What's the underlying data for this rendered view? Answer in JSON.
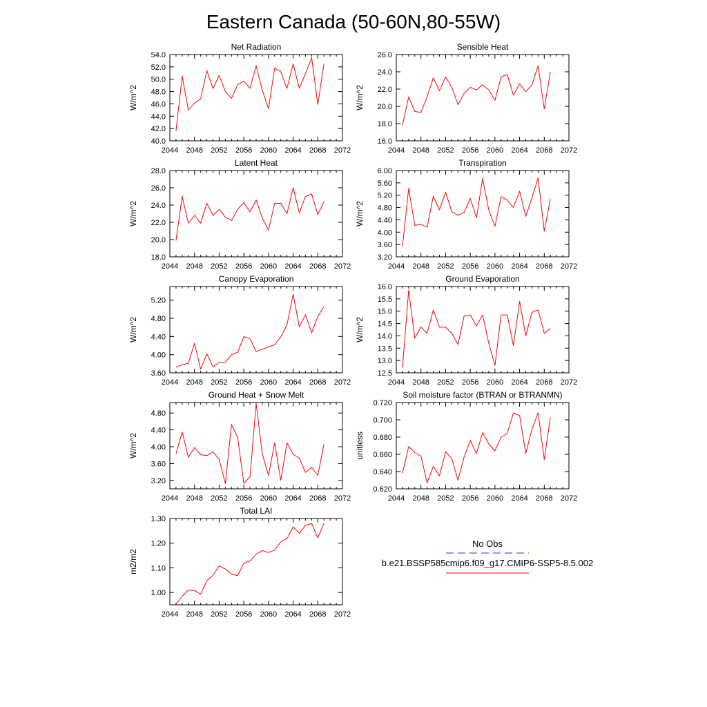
{
  "figure": {
    "title": "Eastern Canada (50-60N,80-55W)",
    "legend": {
      "entries": [
        {
          "label": "No Obs",
          "color": "#2c2ccf",
          "dashed": true
        },
        {
          "label": "b.e21.BSSP585cmip6.f09_g17.CMIP6-SSP5-8.5.002",
          "color": "#ff0000",
          "dashed": false
        }
      ]
    }
  },
  "chart_data": [
    {
      "type": "line",
      "title": "Net Radiation",
      "xlabel": "",
      "ylabel": "W/m^2",
      "xlim": [
        2044,
        2072
      ],
      "ylim": [
        40,
        54
      ],
      "yticks": [
        40,
        42,
        44,
        46,
        48,
        50,
        52,
        54
      ],
      "ydecimals": 1,
      "xticks": [
        2044,
        2048,
        2052,
        2056,
        2060,
        2064,
        2068,
        2072
      ],
      "series": [
        {
          "color": "#ff0000",
          "x": [
            2045,
            2046,
            2047,
            2048,
            2049,
            2050,
            2051,
            2052,
            2053,
            2054,
            2055,
            2056,
            2057,
            2058,
            2059,
            2060,
            2061,
            2062,
            2063,
            2064,
            2065,
            2066,
            2067,
            2068,
            2069
          ],
          "y": [
            41.6,
            50.5,
            45.0,
            46.1,
            46.8,
            51.4,
            48.5,
            50.6,
            48.0,
            46.9,
            49.1,
            49.7,
            48.5,
            52.2,
            48.2,
            45.2,
            51.8,
            51.2,
            48.5,
            52.5,
            48.5,
            50.9,
            53.5,
            45.9,
            52.5
          ]
        }
      ]
    },
    {
      "type": "line",
      "title": "Sensible Heat",
      "xlabel": "",
      "ylabel": "W/m^2",
      "xlim": [
        2044,
        2072
      ],
      "ylim": [
        16,
        26
      ],
      "yticks": [
        16,
        18,
        20,
        22,
        24,
        26
      ],
      "ydecimals": 1,
      "xticks": [
        2044,
        2048,
        2052,
        2056,
        2060,
        2064,
        2068,
        2072
      ],
      "series": [
        {
          "color": "#ff0000",
          "x": [
            2045,
            2046,
            2047,
            2048,
            2049,
            2050,
            2051,
            2052,
            2053,
            2054,
            2055,
            2056,
            2057,
            2058,
            2059,
            2060,
            2061,
            2062,
            2063,
            2064,
            2065,
            2066,
            2067,
            2068,
            2069
          ],
          "y": [
            17.8,
            21.1,
            19.4,
            19.3,
            21.1,
            23.3,
            21.8,
            23.4,
            22.2,
            20.2,
            21.5,
            22.2,
            21.9,
            22.5,
            21.9,
            20.7,
            23.4,
            23.7,
            21.3,
            22.6,
            21.7,
            22.5,
            24.7,
            19.7,
            24.0
          ]
        }
      ]
    },
    {
      "type": "line",
      "title": "Latent Heat",
      "xlabel": "",
      "ylabel": "W/m^2",
      "xlim": [
        2044,
        2072
      ],
      "ylim": [
        18,
        28
      ],
      "yticks": [
        18,
        20,
        22,
        24,
        26,
        28
      ],
      "ydecimals": 1,
      "xticks": [
        2044,
        2048,
        2052,
        2056,
        2060,
        2064,
        2068,
        2072
      ],
      "series": [
        {
          "color": "#ff0000",
          "x": [
            2045,
            2046,
            2047,
            2048,
            2049,
            2050,
            2051,
            2052,
            2053,
            2054,
            2055,
            2056,
            2057,
            2058,
            2059,
            2060,
            2061,
            2062,
            2063,
            2064,
            2065,
            2066,
            2067,
            2068,
            2069
          ],
          "y": [
            19.9,
            25.0,
            21.9,
            22.8,
            21.9,
            24.2,
            22.8,
            23.5,
            22.6,
            22.2,
            23.5,
            24.3,
            23.2,
            24.6,
            22.5,
            21.1,
            24.2,
            24.2,
            23.0,
            26.0,
            23.1,
            25.0,
            25.3,
            22.9,
            24.4
          ]
        }
      ]
    },
    {
      "type": "line",
      "title": "Transpiration",
      "xlabel": "",
      "ylabel": "W/m^2",
      "xlim": [
        2044,
        2072
      ],
      "ylim": [
        3.2,
        6.0
      ],
      "yticks": [
        3.2,
        3.6,
        4.0,
        4.4,
        4.8,
        5.2,
        5.6,
        6.0
      ],
      "ydecimals": 2,
      "xticks": [
        2044,
        2048,
        2052,
        2056,
        2060,
        2064,
        2068,
        2072
      ],
      "series": [
        {
          "color": "#ff0000",
          "x": [
            2045,
            2046,
            2047,
            2048,
            2049,
            2050,
            2051,
            2052,
            2053,
            2054,
            2055,
            2056,
            2057,
            2058,
            2059,
            2060,
            2061,
            2062,
            2063,
            2064,
            2065,
            2066,
            2067,
            2068,
            2069
          ],
          "y": [
            3.53,
            5.42,
            4.22,
            4.26,
            4.16,
            5.17,
            4.72,
            5.3,
            4.66,
            4.55,
            4.64,
            5.1,
            4.47,
            5.74,
            4.72,
            4.19,
            5.15,
            5.04,
            4.8,
            5.33,
            4.51,
            5.12,
            5.76,
            4.03,
            5.08
          ]
        }
      ]
    },
    {
      "type": "line",
      "title": "Canopy Evaporation",
      "xlabel": "",
      "ylabel": "W/m^2",
      "xlim": [
        2044,
        2072
      ],
      "ylim": [
        3.6,
        5.5
      ],
      "yticks": [
        3.6,
        4.0,
        4.4,
        4.8,
        5.2
      ],
      "ydecimals": 2,
      "xticks": [
        2044,
        2048,
        2052,
        2056,
        2060,
        2064,
        2068,
        2072
      ],
      "series": [
        {
          "color": "#ff0000",
          "x": [
            2045,
            2046,
            2047,
            2048,
            2049,
            2050,
            2051,
            2052,
            2053,
            2054,
            2055,
            2056,
            2057,
            2058,
            2059,
            2060,
            2061,
            2062,
            2063,
            2064,
            2065,
            2066,
            2067,
            2068,
            2069
          ],
          "y": [
            3.72,
            3.78,
            3.81,
            4.25,
            3.68,
            4.02,
            3.73,
            3.83,
            3.83,
            4.0,
            4.05,
            4.4,
            4.35,
            4.07,
            4.12,
            4.17,
            4.22,
            4.39,
            4.65,
            5.33,
            4.61,
            4.88,
            4.48,
            4.84,
            5.06
          ]
        }
      ]
    },
    {
      "type": "line",
      "title": "Ground Evaporation",
      "xlabel": "",
      "ylabel": "W/m^2",
      "xlim": [
        2044,
        2072
      ],
      "ylim": [
        12.5,
        16.0
      ],
      "yticks": [
        12.5,
        13.0,
        13.5,
        14.0,
        14.5,
        15.0,
        15.5,
        16.0
      ],
      "ydecimals": 1,
      "xticks": [
        2044,
        2048,
        2052,
        2056,
        2060,
        2064,
        2068,
        2072
      ],
      "series": [
        {
          "color": "#ff0000",
          "x": [
            2045,
            2046,
            2047,
            2048,
            2049,
            2050,
            2051,
            2052,
            2053,
            2054,
            2055,
            2056,
            2057,
            2058,
            2059,
            2060,
            2061,
            2062,
            2063,
            2064,
            2065,
            2066,
            2067,
            2068,
            2069
          ],
          "y": [
            12.7,
            15.85,
            13.9,
            14.35,
            14.1,
            15.05,
            14.35,
            14.35,
            14.1,
            13.65,
            14.8,
            14.85,
            14.4,
            14.85,
            13.7,
            12.8,
            14.85,
            14.85,
            13.6,
            15.4,
            14.0,
            14.95,
            15.05,
            14.1,
            14.3
          ]
        }
      ]
    },
    {
      "type": "line",
      "title": "Ground Heat + Snow Melt",
      "xlabel": "",
      "ylabel": "W/m^2",
      "xlim": [
        2044,
        2072
      ],
      "ylim": [
        3.0,
        5.05
      ],
      "yticks": [
        3.2,
        3.6,
        4.0,
        4.4,
        4.8
      ],
      "ydecimals": 2,
      "xticks": [
        2044,
        2048,
        2052,
        2056,
        2060,
        2064,
        2068,
        2072
      ],
      "series": [
        {
          "color": "#ff0000",
          "x": [
            2045,
            2046,
            2047,
            2048,
            2049,
            2050,
            2051,
            2052,
            2053,
            2054,
            2055,
            2056,
            2057,
            2058,
            2059,
            2060,
            2061,
            2062,
            2063,
            2064,
            2065,
            2066,
            2067,
            2068,
            2069
          ],
          "y": [
            3.83,
            4.35,
            3.75,
            3.98,
            3.81,
            3.79,
            3.88,
            3.7,
            3.12,
            4.53,
            4.22,
            3.13,
            3.28,
            5.02,
            3.83,
            3.32,
            4.09,
            3.2,
            4.09,
            3.82,
            3.73,
            3.39,
            3.51,
            3.32,
            4.06
          ]
        }
      ]
    },
    {
      "type": "line",
      "title": "Soil moisture factor (BTRAN or BTRANMN)",
      "xlabel": "",
      "ylabel": "unitless",
      "xlim": [
        2044,
        2072
      ],
      "ylim": [
        0.62,
        0.72
      ],
      "yticks": [
        0.62,
        0.64,
        0.66,
        0.68,
        0.7,
        0.72
      ],
      "ydecimals": 3,
      "xticks": [
        2044,
        2048,
        2052,
        2056,
        2060,
        2064,
        2068,
        2072
      ],
      "series": [
        {
          "color": "#ff0000",
          "x": [
            2045,
            2046,
            2047,
            2048,
            2049,
            2050,
            2051,
            2052,
            2053,
            2054,
            2055,
            2056,
            2057,
            2058,
            2059,
            2060,
            2061,
            2062,
            2063,
            2064,
            2065,
            2066,
            2067,
            2068,
            2069
          ],
          "y": [
            0.638,
            0.669,
            0.662,
            0.658,
            0.627,
            0.646,
            0.635,
            0.663,
            0.655,
            0.63,
            0.657,
            0.676,
            0.661,
            0.685,
            0.672,
            0.664,
            0.68,
            0.684,
            0.708,
            0.705,
            0.661,
            0.689,
            0.708,
            0.654,
            0.703
          ]
        }
      ]
    },
    {
      "type": "line",
      "title": "Total LAI",
      "xlabel": "",
      "ylabel": "m2/m2",
      "xlim": [
        2044,
        2072
      ],
      "ylim": [
        0.95,
        1.3
      ],
      "yticks": [
        1.0,
        1.1,
        1.2,
        1.3
      ],
      "ydecimals": 2,
      "xticks": [
        2044,
        2048,
        2052,
        2056,
        2060,
        2064,
        2068,
        2072
      ],
      "series": [
        {
          "color": "#ff0000",
          "x": [
            2045,
            2046,
            2047,
            2048,
            2049,
            2050,
            2051,
            2052,
            2053,
            2054,
            2055,
            2056,
            2057,
            2058,
            2059,
            2060,
            2061,
            2062,
            2063,
            2064,
            2065,
            2066,
            2067,
            2068,
            2069
          ],
          "y": [
            0.952,
            0.985,
            1.01,
            1.008,
            0.993,
            1.048,
            1.07,
            1.108,
            1.095,
            1.075,
            1.068,
            1.118,
            1.128,
            1.155,
            1.17,
            1.162,
            1.172,
            1.205,
            1.218,
            1.266,
            1.24,
            1.272,
            1.28,
            1.222,
            1.28
          ]
        }
      ]
    }
  ]
}
